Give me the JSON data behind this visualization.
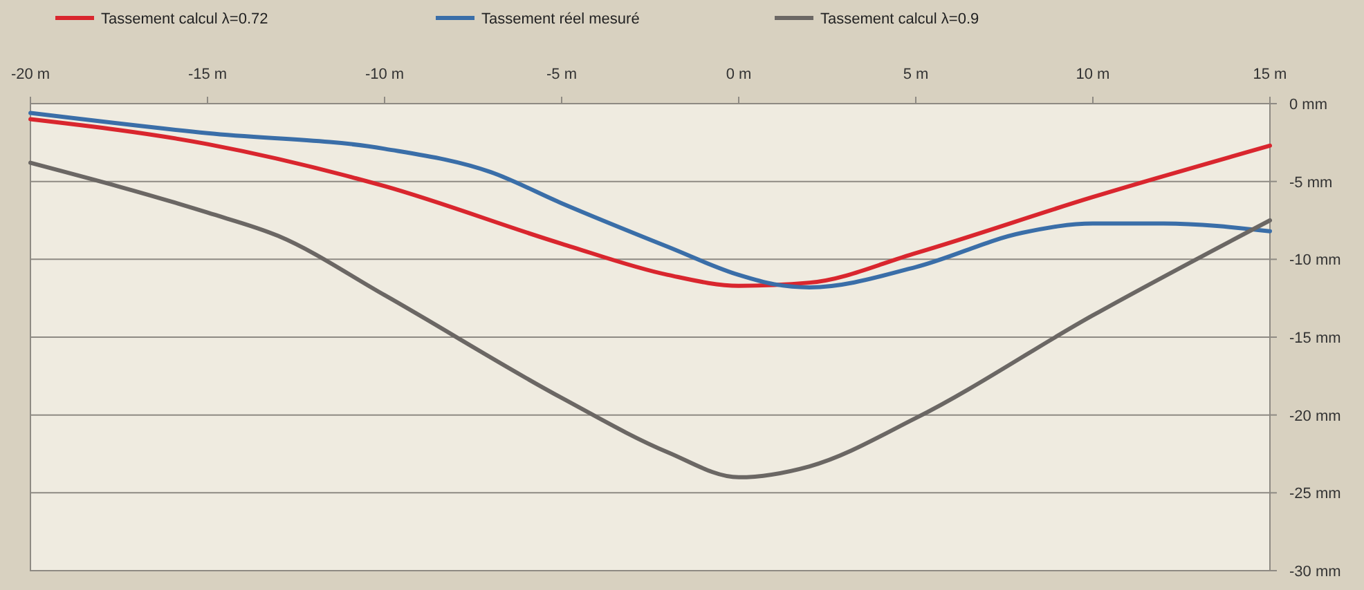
{
  "chart_data": {
    "type": "line",
    "x": [
      -20,
      -15,
      -10,
      -7,
      -5,
      -2,
      0,
      1,
      2,
      5,
      8,
      10,
      12,
      15
    ],
    "series": [
      {
        "name": "Tassement calcul λ=0.72",
        "color": "#d9262e",
        "x": [
          -20,
          -15,
          -10,
          -5,
          -2,
          0,
          2,
          5,
          10,
          15
        ],
        "values": [
          -1.0,
          -2.6,
          -5.3,
          -9,
          -11,
          -11.7,
          -11.5,
          -9.6,
          -6,
          -2.7
        ]
      },
      {
        "name": "Tassement réel mesuré",
        "color": "#3a6ea8",
        "values": [
          -0.6,
          -1.9,
          -2.9,
          -4.4,
          -6.4,
          -9.2,
          -11,
          -11.6,
          -11.8,
          -10.5,
          -8.3,
          -7.7,
          -7.7,
          -8.2
        ]
      },
      {
        "name": "Tassement calcul λ=0.9",
        "color": "#6b6764",
        "x": [
          -20,
          -15,
          -13,
          -10,
          -5,
          -2,
          0,
          2,
          5,
          10,
          15
        ],
        "values": [
          -3.8,
          -7,
          -8.5,
          -12.3,
          -18.9,
          -22.4,
          -24,
          -23.3,
          -20.2,
          -13.6,
          -7.5
        ]
      }
    ],
    "xlim": [
      -20,
      15
    ],
    "xticks": [
      {
        "value": -20,
        "label": "-20 m"
      },
      {
        "value": -15,
        "label": "-15 m"
      },
      {
        "value": -10,
        "label": "-10 m"
      },
      {
        "value": -5,
        "label": "-5 m"
      },
      {
        "value": 0,
        "label": "0 m"
      },
      {
        "value": 5,
        "label": "5 m"
      },
      {
        "value": 10,
        "label": "10 m"
      },
      {
        "value": 15,
        "label": "15 m"
      }
    ],
    "ylim": [
      -30,
      0
    ],
    "yticks": [
      {
        "value": 0,
        "label": "0 mm"
      },
      {
        "value": -5,
        "label": "-5 mm"
      },
      {
        "value": -10,
        "label": "-10 mm"
      },
      {
        "value": -15,
        "label": "-15 mm"
      },
      {
        "value": -20,
        "label": "-20 mm"
      },
      {
        "value": -25,
        "label": "-25 mm"
      },
      {
        "value": -30,
        "label": "-30 mm"
      }
    ],
    "grid": "y",
    "legend": "top",
    "marker": "none",
    "line_style": "solid"
  }
}
